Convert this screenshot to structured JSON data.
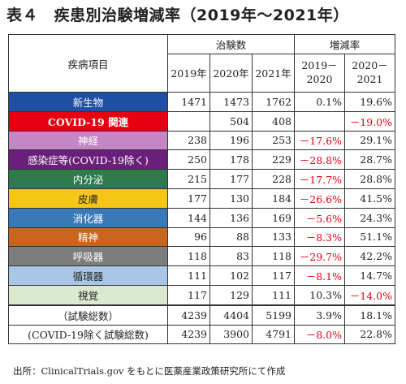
{
  "title": "表４　疾患別治験増減率（2019年～2021年）",
  "header": {
    "disease_label": "疾病項目",
    "group_trials": "治験数",
    "group_rate": "増減率",
    "years": [
      "2019年",
      "2020年",
      "2021年"
    ],
    "rate_cols": [
      [
        "2019－",
        "2020"
      ],
      [
        "2020－",
        "2021"
      ]
    ]
  },
  "rows": [
    {
      "name": "新生物",
      "bg": "#1e4fa3",
      "dark": true,
      "bold": false,
      "v2019": "1471",
      "v2020": "1473",
      "v2021": "1762",
      "r1": "0.1%",
      "r2": "19.6%",
      "r1_red": false,
      "r2_red": false
    },
    {
      "name": "COVID-19 関連",
      "bg": "#e60012",
      "dark": true,
      "bold": true,
      "v2019": "",
      "v2020": "504",
      "v2021": "408",
      "r1": "",
      "r2": "－19.0%",
      "r1_red": false,
      "r2_red": true
    },
    {
      "name": "神経",
      "bg": "#c486c4",
      "dark": true,
      "bold": false,
      "v2019": "238",
      "v2020": "196",
      "v2021": "253",
      "r1": "－17.6%",
      "r2": "29.1%",
      "r1_red": true,
      "r2_red": false
    },
    {
      "name": "感染症等(COVID-19除く)",
      "bg": "#6a1f7a",
      "dark": true,
      "bold": false,
      "v2019": "250",
      "v2020": "178",
      "v2021": "229",
      "r1": "－28.8%",
      "r2": "28.7%",
      "r1_red": true,
      "r2_red": false
    },
    {
      "name": "内分泌",
      "bg": "#2e7a4a",
      "dark": true,
      "bold": false,
      "v2019": "215",
      "v2020": "177",
      "v2021": "228",
      "r1": "－17.7%",
      "r2": "28.8%",
      "r1_red": true,
      "r2_red": false
    },
    {
      "name": "皮膚",
      "bg": "#f5c518",
      "dark": false,
      "bold": false,
      "v2019": "177",
      "v2020": "130",
      "v2021": "184",
      "r1": "－26.6%",
      "r2": "41.5%",
      "r1_red": true,
      "r2_red": false
    },
    {
      "name": "消化器",
      "bg": "#3a79b8",
      "dark": true,
      "bold": false,
      "v2019": "144",
      "v2020": "136",
      "v2021": "169",
      "r1": "－5.6%",
      "r2": "24.3%",
      "r1_red": true,
      "r2_red": false
    },
    {
      "name": "精神",
      "bg": "#c8641e",
      "dark": true,
      "bold": false,
      "v2019": "96",
      "v2020": "88",
      "v2021": "133",
      "r1": "－8.3%",
      "r2": "51.1%",
      "r1_red": true,
      "r2_red": false
    },
    {
      "name": "呼吸器",
      "bg": "#7d7d7d",
      "dark": true,
      "bold": false,
      "v2019": "118",
      "v2020": "83",
      "v2021": "118",
      "r1": "－29.7%",
      "r2": "42.2%",
      "r1_red": true,
      "r2_red": false
    },
    {
      "name": "循環器",
      "bg": "#a9c6e6",
      "dark": false,
      "bold": false,
      "v2019": "111",
      "v2020": "102",
      "v2021": "117",
      "r1": "－8.1%",
      "r2": "14.7%",
      "r1_red": true,
      "r2_red": false
    },
    {
      "name": "視覚",
      "bg": "#dbe9d0",
      "dark": false,
      "bold": false,
      "v2019": "117",
      "v2020": "129",
      "v2021": "111",
      "r1": "10.3%",
      "r2": "－14.0%",
      "r1_red": false,
      "r2_red": true
    }
  ],
  "totals": [
    {
      "name": "（試験総数）",
      "v2019": "4239",
      "v2020": "4404",
      "v2021": "5199",
      "r1": "3.9%",
      "r2": "18.1%",
      "r1_red": false,
      "r2_red": false
    },
    {
      "name": "(COVID-19除く試験総数)",
      "v2019": "4239",
      "v2020": "3900",
      "v2021": "4791",
      "r1": "－8.0%",
      "r2": "22.8%",
      "r1_red": true,
      "r2_red": false
    }
  ],
  "source": "出所：ClinicalTrials.gov をもとに医薬産業政策研究所にて作成"
}
